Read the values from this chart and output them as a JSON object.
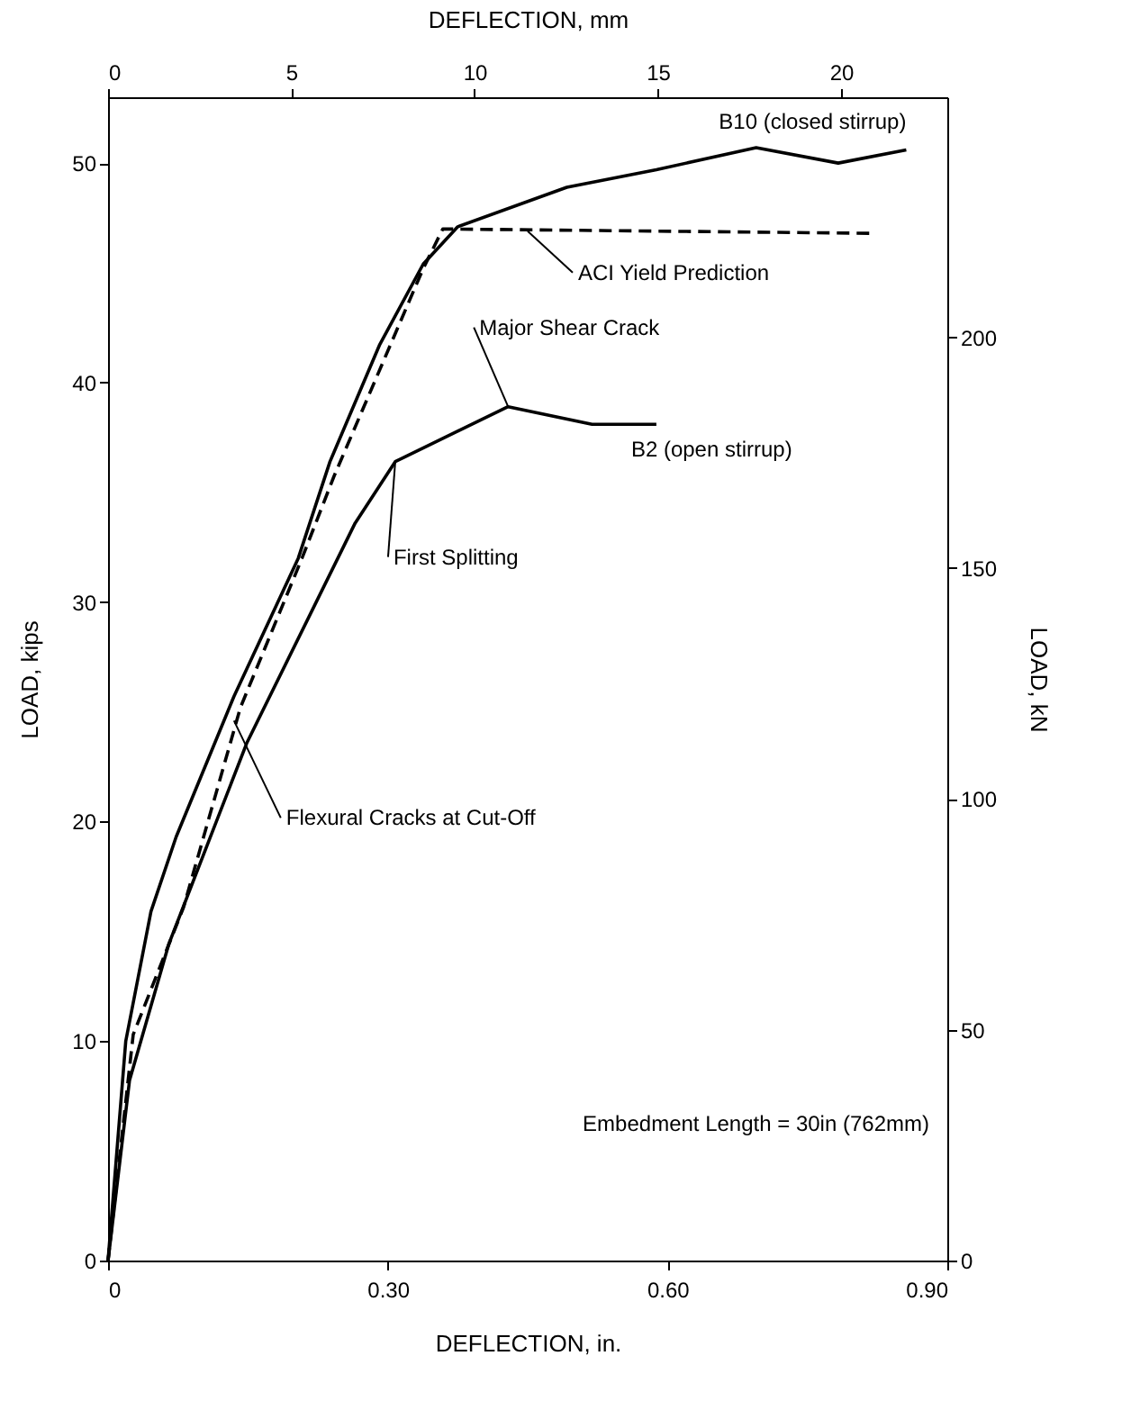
{
  "chart_data": {
    "type": "line",
    "xlabel": "DEFLECTION, in.",
    "ylabel": "LOAD, kips",
    "x2label": "DEFLECTION, mm",
    "y2label": "LOAD, kN",
    "xlim": [
      0,
      0.9
    ],
    "xticks": [
      0,
      {
        "value": 0.3,
        "label": "0.30"
      },
      {
        "value": 0.6,
        "label": "0.60"
      },
      {
        "value": 0.9,
        "label": "0.90"
      }
    ],
    "ylim": [
      0,
      53
    ],
    "yticks": [
      0,
      10,
      20,
      30,
      40,
      50
    ],
    "x2lim": [
      0,
      22.9
    ],
    "x2ticks": [
      0,
      5,
      10,
      15,
      20
    ],
    "y2lim": [
      0,
      252
    ],
    "y2ticks": [
      0,
      50,
      100,
      150,
      200
    ],
    "grid": false,
    "legend": false,
    "marker": "none",
    "series": [
      {
        "name": "B10 (closed stirrup)",
        "color": "#000000",
        "line_style": "solid",
        "x": [
          0,
          0.019,
          0.046,
          0.073,
          0.135,
          0.204,
          0.238,
          0.291,
          0.338,
          0.375,
          0.492,
          0.588,
          0.695,
          0.783,
          0.856
        ],
        "values": [
          0,
          10,
          15.9,
          19.3,
          25.7,
          32.0,
          36.4,
          41.7,
          45.4,
          47.1,
          48.9,
          49.7,
          50.7,
          50.0,
          50.6
        ]
      },
      {
        "color": "#000000",
        "line_style": "dashed",
        "x": [
          0,
          0.027,
          0.081,
          0.142,
          0.208,
          0.242,
          0.338,
          0.359,
          0.819
        ],
        "values": [
          0,
          10.3,
          16.1,
          25.2,
          32.0,
          35.7,
          45.2,
          47.0,
          46.8
        ]
      },
      {
        "name": "B2 (open stirrup)",
        "color": "#000000",
        "line_style": "solid",
        "x": [
          0,
          0.023,
          0.065,
          0.149,
          0.265,
          0.308,
          0.429,
          0.519,
          0.588
        ],
        "values": [
          0,
          8.2,
          14.4,
          23.6,
          33.6,
          36.4,
          38.9,
          38.1,
          38.1
        ]
      }
    ],
    "annotations": [
      {
        "text": "ACI Yield Prediction",
        "x": 0.45,
        "y": 46.9
      },
      {
        "text": "Major Shear Crack",
        "x": 0.429,
        "y": 38.9
      },
      {
        "text": "First Splitting",
        "x": 0.308,
        "y": 36.4
      },
      {
        "text": "Flexural Cracks at Cut-Off",
        "x": 0.135,
        "y": 24.6
      },
      "Embedment Length = 30in (762mm)"
    ]
  }
}
